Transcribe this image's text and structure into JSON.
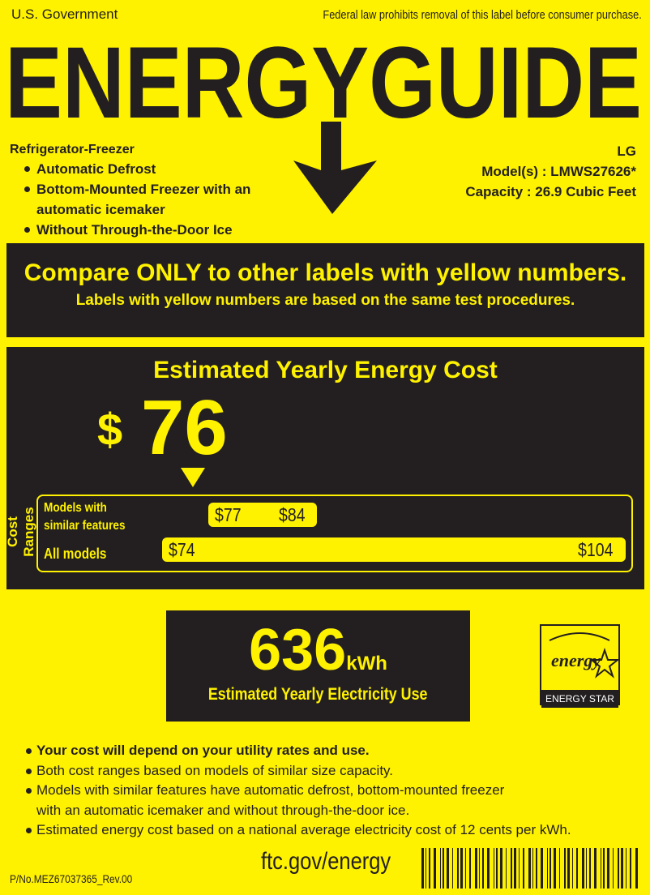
{
  "header": {
    "left": "U.S. Government",
    "right": "Federal law prohibits removal of this label before consumer purchase."
  },
  "title": "ENERGYGUIDE",
  "product": {
    "type": "Refrigerator-Freezer",
    "features": [
      "Automatic Defrost",
      "Bottom-Mounted Freezer with an automatic icemaker",
      "Without Through-the-Door Ice"
    ]
  },
  "brand": {
    "name": "LG",
    "model": "Model(s) : LMWS27626*",
    "capacity": "Capacity : 26.9 Cubic Feet"
  },
  "compare": {
    "line1": "Compare ONLY to other labels with yellow numbers.",
    "line2": "Labels with yellow numbers are based on the same test procedures."
  },
  "cost": {
    "heading": "Estimated Yearly Energy Cost",
    "dollar": "$",
    "value": "76",
    "value_number": 76,
    "ranges_label": "Cost Ranges",
    "similar": {
      "label_line1": "Models with",
      "label_line2": "similar features",
      "low": "$77",
      "high": "$84",
      "low_number": 77,
      "high_number": 84
    },
    "all": {
      "label": "All models",
      "low": "$74",
      "high": "$104",
      "low_number": 74,
      "high_number": 104
    }
  },
  "usage": {
    "value": "636",
    "unit": "kWh",
    "label": "Estimated Yearly Electricity Use"
  },
  "energy_star": {
    "logo_text": "energy",
    "label": "ENERGY STAR"
  },
  "notes": [
    "Your cost will depend on your utility rates and use.",
    "Both cost ranges based on models of similar size capacity.",
    "Models with similar features have automatic defrost, bottom-mounted freezer",
    "with an automatic icemaker and without through-the-door ice.",
    "Estimated energy cost based on a national average electricity cost of 12 cents per kWh."
  ],
  "footer": {
    "part_no": "P/No.MEZ67037365_Rev.00",
    "url": "ftc.gov/energy"
  },
  "colors": {
    "yellow": "#fff200",
    "dark": "#231f20"
  }
}
